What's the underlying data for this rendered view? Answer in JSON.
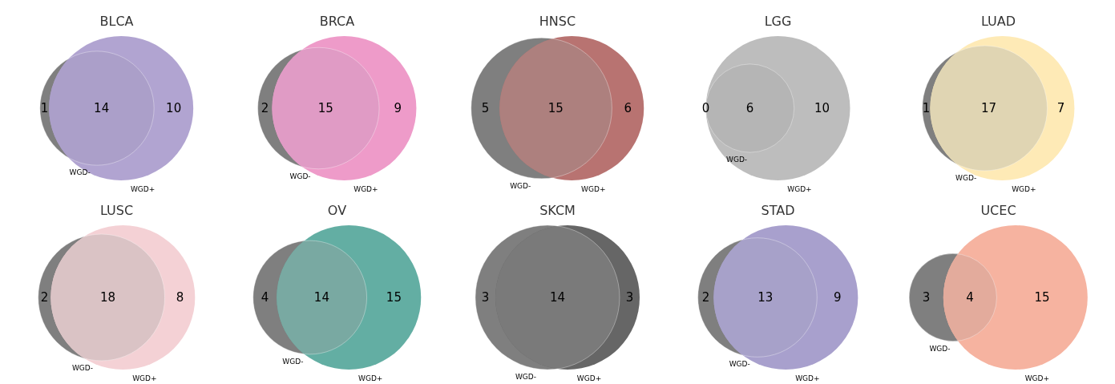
{
  "chart_data": [
    {
      "type": "other",
      "title": "BLCA",
      "categories": [
        "WGD-",
        null,
        "WGD+"
      ],
      "values": [
        1,
        14,
        10
      ],
      "data_labels": true,
      "colors": [
        "#7f7f7f",
        "#ab9fc9",
        "#b1a4d1"
      ]
    },
    {
      "type": "other",
      "title": "BRCA",
      "categories": [
        "WGD-",
        null,
        "WGD+"
      ],
      "values": [
        2,
        15,
        9
      ],
      "data_labels": true,
      "colors": [
        "#7f7f7f",
        "#e09bc5",
        "#ee9bc9"
      ]
    },
    {
      "type": "other",
      "title": "HNSC",
      "categories": [
        "WGD-",
        null,
        "WGD+"
      ],
      "values": [
        5,
        15,
        6
      ],
      "data_labels": true,
      "colors": [
        "#7f7f7f",
        "#ad807e",
        "#b87371"
      ]
    },
    {
      "type": "other",
      "title": "LGG",
      "categories": [
        "WGD-",
        null,
        "WGD+"
      ],
      "values": [
        0,
        6,
        10
      ],
      "data_labels": true,
      "colors": [
        "#b0b0b0",
        "#b5b5b5",
        "#bdbdbd"
      ]
    },
    {
      "type": "other",
      "title": "LUAD",
      "categories": [
        "WGD-",
        null,
        "WGD+"
      ],
      "values": [
        1,
        17,
        7
      ],
      "data_labels": true,
      "colors": [
        "#7f7f7f",
        "#e0d5b3",
        "#feeab6"
      ]
    },
    {
      "type": "other",
      "title": "LUSC",
      "categories": [
        "WGD-",
        null,
        "WGD+"
      ],
      "values": [
        2,
        18,
        8
      ],
      "data_labels": true,
      "colors": [
        "#7f7f7f",
        "#dac3c5",
        "#f4d1d5"
      ]
    },
    {
      "type": "other",
      "title": "OV",
      "categories": [
        "WGD-",
        null,
        "WGD+"
      ],
      "values": [
        4,
        14,
        15
      ],
      "data_labels": true,
      "colors": [
        "#7f7f7f",
        "#79a9a2",
        "#63aea3"
      ]
    },
    {
      "type": "other",
      "title": "SKCM",
      "categories": [
        "WGD-",
        null,
        "WGD+"
      ],
      "values": [
        3,
        14,
        3
      ],
      "data_labels": true,
      "colors": [
        "#7f7f7f",
        "#7a7a7a",
        "#666666"
      ]
    },
    {
      "type": "other",
      "title": "STAD",
      "categories": [
        "WGD-",
        null,
        "WGD+"
      ],
      "values": [
        2,
        13,
        9
      ],
      "data_labels": true,
      "colors": [
        "#7f7f7f",
        "#a7a1c9",
        "#a8a0cd"
      ]
    },
    {
      "type": "other",
      "title": "UCEC",
      "categories": [
        "WGD-",
        null,
        "WGD+"
      ],
      "values": [
        3,
        4,
        15
      ],
      "data_labels": true,
      "colors": [
        "#7f7f7f",
        "#e3ab9c",
        "#f6b3a0"
      ]
    }
  ]
}
